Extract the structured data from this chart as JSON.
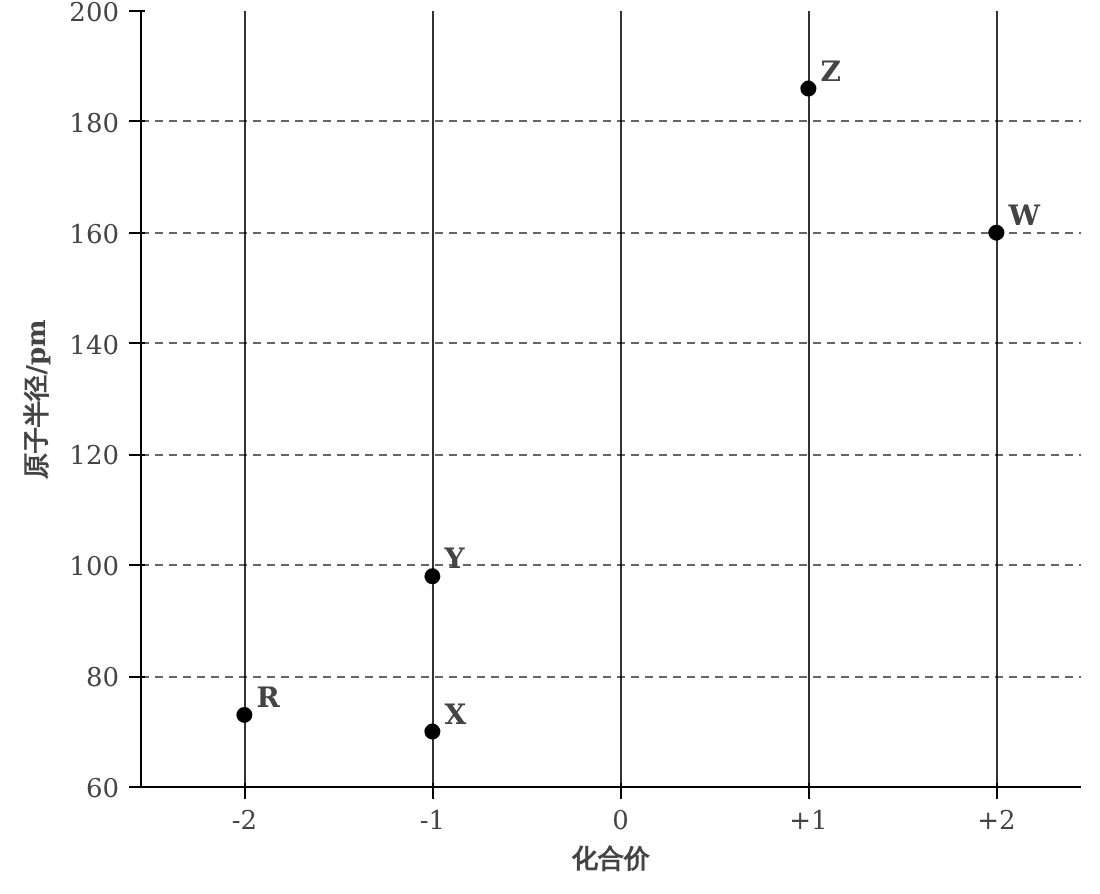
{
  "chart_data": {
    "type": "scatter",
    "xlabel": "化合价",
    "ylabel": "原子半径/pm",
    "x": [
      -2,
      -1,
      -1,
      1,
      2
    ],
    "series": [
      {
        "color": "#000000",
        "values": [
          73,
          70,
          98,
          186,
          160
        ]
      }
    ],
    "annotations": [
      {
        "text": "R",
        "x": -2,
        "y": 73
      },
      {
        "text": "X",
        "x": -1,
        "y": 70
      },
      {
        "text": "Y",
        "x": -1,
        "y": 98
      },
      {
        "text": "Z",
        "x": 1,
        "y": 186
      },
      {
        "text": "W",
        "x": 2,
        "y": 160
      }
    ],
    "xlim": [
      -2.55,
      2.45
    ],
    "ylim": [
      60,
      200
    ],
    "xticks": [
      {
        "value": -2,
        "label": "-2"
      },
      {
        "value": -1,
        "label": "-1"
      },
      0,
      {
        "value": 1,
        "label": "+1"
      },
      {
        "value": 2,
        "label": "+2"
      }
    ],
    "yticks": [
      60,
      80,
      100,
      120,
      140,
      160,
      180,
      200
    ],
    "grid": true,
    "marker": "circle"
  }
}
